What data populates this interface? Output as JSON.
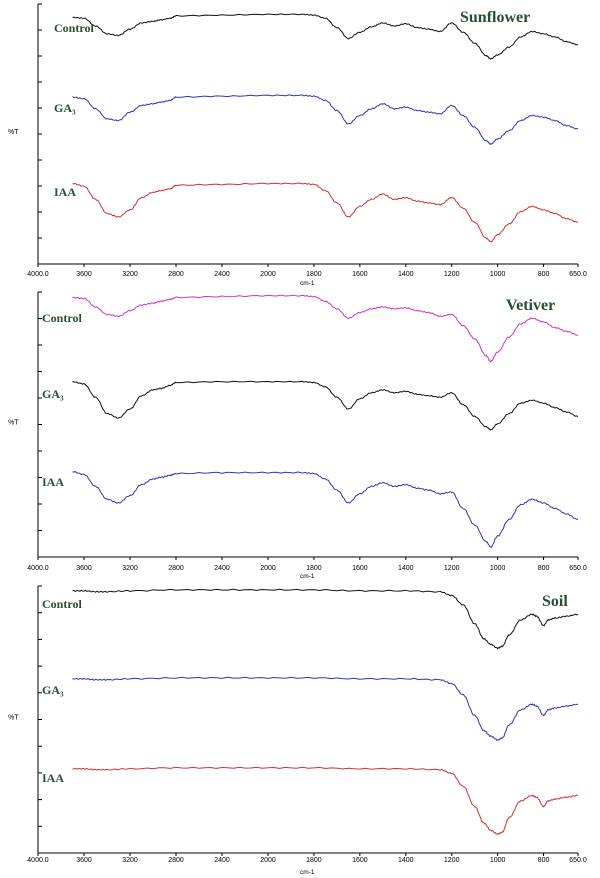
{
  "figure": {
    "panels": [
      {
        "title": "Sunflower",
        "ylabel": "%T",
        "xunit": "cm-1",
        "xticks": [
          "4000.0",
          "3600",
          "3200",
          "2800",
          "2400",
          "2000",
          "1800",
          "1600",
          "1400",
          "1200",
          "1000",
          "800",
          "650.0"
        ],
        "series_labels": [
          "Control",
          "GA₃",
          "IAA"
        ],
        "colors": [
          "#111111",
          "#3333bb",
          "#cc3333"
        ]
      },
      {
        "title": "Vetiver",
        "ylabel": "%T",
        "xunit": "cm-1",
        "xticks": [
          "4000.0",
          "3600",
          "3200",
          "2800",
          "2400",
          "2000",
          "1800",
          "1600",
          "1400",
          "1200",
          "1000",
          "800",
          "650.0"
        ],
        "series_labels": [
          "Control",
          "GA₃",
          "IAA"
        ],
        "colors": [
          "#cc33cc",
          "#111111",
          "#3333bb"
        ]
      },
      {
        "title": "Soil",
        "ylabel": "%T",
        "xunit": "cm-1",
        "xticks": [
          "4000.0",
          "3600",
          "3200",
          "2800",
          "2400",
          "2000",
          "1800",
          "1600",
          "1400",
          "1200",
          "1000",
          "800",
          "650.0"
        ],
        "series_labels": [
          "Control",
          "GA₃",
          "IAA"
        ],
        "colors": [
          "#111111",
          "#3333bb",
          "#cc3333"
        ]
      }
    ]
  },
  "chart_data": [
    {
      "type": "line",
      "title": "Sunflower",
      "xlabel": "cm-1",
      "ylabel": "%T",
      "xlim": [
        4000,
        650
      ],
      "series": [
        {
          "name": "Control",
          "color": "#111111",
          "x": [
            3700,
            3600,
            3500,
            3400,
            3300,
            3200,
            3100,
            3000,
            2930,
            2850,
            2800,
            2400,
            2000,
            1850,
            1800,
            1750,
            1700,
            1650,
            1600,
            1550,
            1500,
            1450,
            1400,
            1350,
            1300,
            1250,
            1200,
            1150,
            1100,
            1050,
            1030,
            1000,
            950,
            900,
            850,
            800,
            750,
            700,
            650
          ],
          "y": [
            93,
            92,
            82,
            72,
            70,
            78,
            86,
            88,
            90,
            92,
            95,
            96,
            97,
            97,
            96,
            92,
            80,
            66,
            74,
            81,
            86,
            82,
            85,
            80,
            78,
            75,
            86,
            74,
            60,
            44,
            40,
            45,
            55,
            68,
            75,
            72,
            68,
            62,
            58
          ]
        },
        {
          "name": "GA₃",
          "color": "#3333bb",
          "x": [
            3700,
            3600,
            3500,
            3400,
            3300,
            3200,
            3100,
            3000,
            2930,
            2850,
            2800,
            2400,
            2000,
            1850,
            1800,
            1750,
            1700,
            1650,
            1600,
            1550,
            1500,
            1450,
            1400,
            1350,
            1300,
            1250,
            1200,
            1150,
            1100,
            1050,
            1030,
            1000,
            950,
            900,
            850,
            800,
            750,
            700,
            650
          ],
          "y": [
            94,
            92,
            80,
            68,
            66,
            76,
            84,
            86,
            88,
            90,
            94,
            95,
            96,
            96,
            95,
            90,
            78,
            62,
            72,
            80,
            86,
            80,
            82,
            78,
            76,
            74,
            84,
            72,
            58,
            42,
            38,
            44,
            54,
            66,
            72,
            70,
            66,
            60,
            56
          ]
        },
        {
          "name": "IAA",
          "color": "#cc3333",
          "x": [
            3700,
            3600,
            3500,
            3400,
            3300,
            3200,
            3100,
            3000,
            2930,
            2850,
            2800,
            2400,
            2000,
            1850,
            1800,
            1750,
            1700,
            1650,
            1600,
            1550,
            1500,
            1450,
            1400,
            1350,
            1300,
            1250,
            1200,
            1150,
            1100,
            1050,
            1030,
            1000,
            950,
            900,
            850,
            800,
            750,
            700,
            650
          ],
          "y": [
            96,
            93,
            78,
            62,
            58,
            66,
            80,
            86,
            88,
            90,
            94,
            95,
            96,
            96,
            95,
            88,
            74,
            58,
            70,
            78,
            84,
            78,
            80,
            76,
            74,
            72,
            80,
            68,
            52,
            34,
            30,
            38,
            50,
            64,
            70,
            66,
            62,
            56,
            52
          ]
        }
      ]
    },
    {
      "type": "line",
      "title": "Vetiver",
      "xlabel": "cm-1",
      "ylabel": "%T",
      "xlim": [
        4000,
        650
      ],
      "series": [
        {
          "name": "Control",
          "color": "#cc33cc",
          "x": [
            3700,
            3600,
            3500,
            3400,
            3300,
            3200,
            3100,
            3000,
            2930,
            2850,
            2800,
            2400,
            2000,
            1850,
            1800,
            1750,
            1700,
            1650,
            1600,
            1550,
            1500,
            1450,
            1400,
            1350,
            1300,
            1250,
            1200,
            1150,
            1100,
            1050,
            1030,
            1000,
            950,
            900,
            850,
            800,
            750,
            700,
            650
          ],
          "y": [
            92,
            91,
            82,
            74,
            72,
            78,
            84,
            86,
            88,
            90,
            92,
            93,
            94,
            94,
            93,
            88,
            80,
            70,
            76,
            80,
            82,
            80,
            81,
            78,
            76,
            72,
            74,
            62,
            48,
            30,
            24,
            34,
            50,
            64,
            70,
            66,
            60,
            56,
            52
          ]
        },
        {
          "name": "GA₃",
          "color": "#111111",
          "x": [
            3700,
            3600,
            3500,
            3400,
            3300,
            3200,
            3100,
            3000,
            2930,
            2850,
            2800,
            2400,
            2000,
            1850,
            1800,
            1750,
            1700,
            1650,
            1600,
            1550,
            1500,
            1450,
            1400,
            1350,
            1300,
            1250,
            1200,
            1150,
            1100,
            1050,
            1030,
            1000,
            950,
            900,
            850,
            800,
            750,
            700,
            650
          ],
          "y": [
            95,
            92,
            74,
            52,
            46,
            58,
            76,
            84,
            86,
            90,
            94,
            95,
            95,
            95,
            94,
            88,
            74,
            58,
            72,
            80,
            84,
            80,
            82,
            78,
            76,
            74,
            80,
            64,
            48,
            34,
            30,
            38,
            52,
            66,
            70,
            66,
            60,
            54,
            48
          ]
        },
        {
          "name": "IAA",
          "color": "#3333bb",
          "x": [
            3700,
            3600,
            3500,
            3400,
            3300,
            3200,
            3100,
            3000,
            2930,
            2850,
            2800,
            2400,
            2000,
            1850,
            1800,
            1750,
            1700,
            1650,
            1600,
            1550,
            1500,
            1450,
            1400,
            1350,
            1300,
            1250,
            1200,
            1150,
            1100,
            1050,
            1030,
            1000,
            950,
            900,
            850,
            800,
            750,
            700,
            650
          ],
          "y": [
            96,
            93,
            80,
            66,
            62,
            70,
            82,
            88,
            90,
            92,
            94,
            95,
            95,
            95,
            94,
            88,
            76,
            62,
            72,
            80,
            84,
            80,
            82,
            78,
            76,
            72,
            74,
            56,
            38,
            20,
            14,
            26,
            44,
            60,
            66,
            62,
            56,
            50,
            44
          ]
        }
      ]
    },
    {
      "type": "line",
      "title": "Soil",
      "xlabel": "cm-1",
      "ylabel": "%T",
      "xlim": [
        4000,
        650
      ],
      "series": [
        {
          "name": "Control",
          "color": "#111111",
          "x": [
            3700,
            3600,
            3500,
            3400,
            3200,
            2800,
            2400,
            2000,
            1800,
            1600,
            1400,
            1250,
            1200,
            1150,
            1100,
            1060,
            1030,
            1000,
            980,
            950,
            900,
            850,
            830,
            800,
            780,
            750,
            700,
            650
          ],
          "y": [
            97,
            97,
            96,
            96,
            97,
            98,
            98,
            98,
            98,
            97,
            97,
            96,
            92,
            82,
            62,
            46,
            40,
            36,
            38,
            50,
            66,
            72,
            70,
            60,
            66,
            68,
            70,
            72
          ]
        },
        {
          "name": "GA₃",
          "color": "#3333bb",
          "x": [
            3700,
            3600,
            3500,
            3400,
            3200,
            2800,
            2400,
            2000,
            1800,
            1600,
            1400,
            1250,
            1200,
            1150,
            1100,
            1060,
            1030,
            1000,
            980,
            950,
            900,
            850,
            830,
            800,
            780,
            750,
            700,
            650
          ],
          "y": [
            97,
            97,
            96,
            96,
            97,
            98,
            98,
            98,
            98,
            97,
            97,
            96,
            92,
            80,
            58,
            42,
            36,
            32,
            34,
            48,
            64,
            70,
            68,
            58,
            64,
            66,
            68,
            70
          ]
        },
        {
          "name": "IAA",
          "color": "#cc3333",
          "x": [
            3700,
            3600,
            3500,
            3400,
            3200,
            2800,
            2400,
            2000,
            1800,
            1600,
            1400,
            1250,
            1200,
            1150,
            1100,
            1060,
            1030,
            1000,
            980,
            950,
            900,
            850,
            830,
            800,
            780,
            750,
            700,
            650
          ],
          "y": [
            97,
            97,
            96,
            96,
            97,
            98,
            98,
            98,
            98,
            97,
            97,
            96,
            92,
            78,
            56,
            38,
            30,
            26,
            28,
            44,
            62,
            68,
            66,
            56,
            62,
            64,
            66,
            68
          ]
        }
      ]
    }
  ]
}
